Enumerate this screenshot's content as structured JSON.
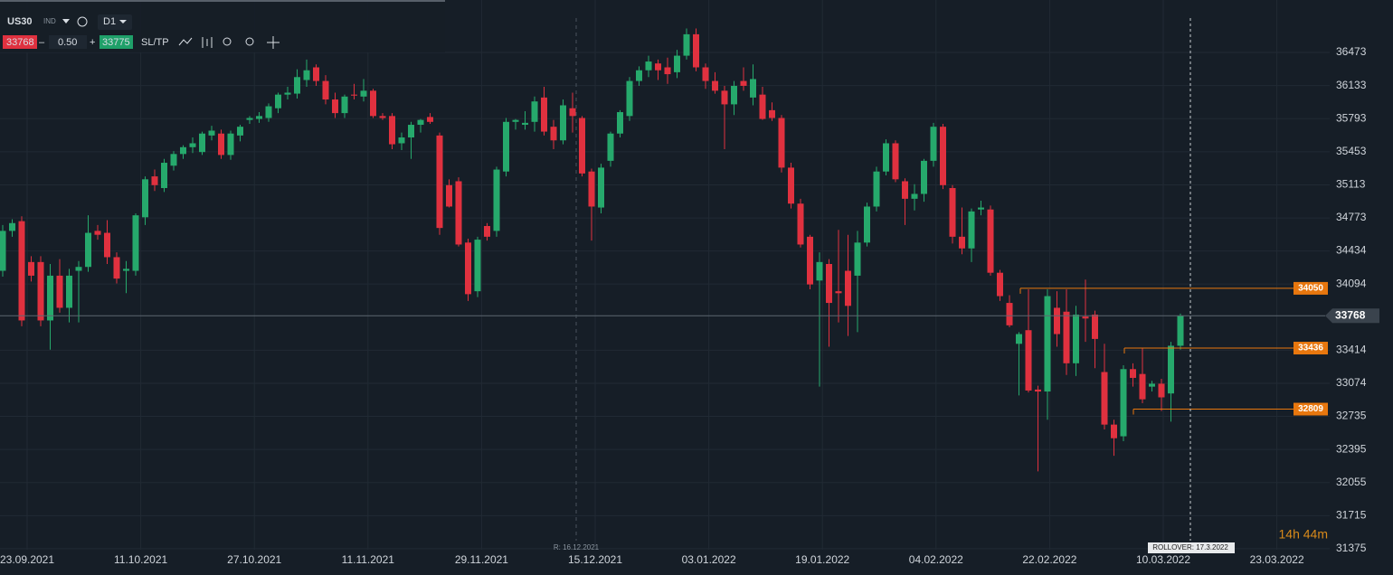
{
  "toolbar": {
    "symbol": "US30",
    "market": "IND",
    "timeframe": "D1",
    "bid": "33768",
    "minus": "–",
    "lot": "0.50",
    "plus": "+",
    "ask": "33775",
    "sltp": "SL/TP"
  },
  "chart_data": {
    "type": "candlestick",
    "candles": [
      [
        34230,
        34700,
        34170,
        34640
      ],
      [
        34640,
        34760,
        34580,
        34720
      ],
      [
        34740,
        34790,
        33660,
        33720
      ],
      [
        34320,
        34380,
        34120,
        34180
      ],
      [
        34320,
        34380,
        33660,
        33720
      ],
      [
        33720,
        34300,
        33420,
        34180
      ],
      [
        34180,
        34350,
        33800,
        33850
      ],
      [
        33850,
        34250,
        33700,
        34180
      ],
      [
        34230,
        34330,
        33700,
        34270
      ],
      [
        34270,
        34800,
        34220,
        34620
      ],
      [
        34640,
        34700,
        34550,
        34600
      ],
      [
        34620,
        34750,
        34300,
        34370
      ],
      [
        34370,
        34420,
        34100,
        34150
      ],
      [
        34230,
        34330,
        34000,
        34250
      ],
      [
        34230,
        34820,
        34180,
        34800
      ],
      [
        34780,
        35200,
        34700,
        35170
      ],
      [
        35200,
        35270,
        35050,
        35110
      ],
      [
        35080,
        35380,
        35040,
        35340
      ],
      [
        35310,
        35460,
        35260,
        35430
      ],
      [
        35430,
        35520,
        35380,
        35500
      ],
      [
        35500,
        35600,
        35440,
        35540
      ],
      [
        35450,
        35660,
        35420,
        35640
      ],
      [
        35620,
        35720,
        35570,
        35670
      ],
      [
        35640,
        35680,
        35380,
        35420
      ],
      [
        35420,
        35670,
        35370,
        35640
      ],
      [
        35620,
        35730,
        35560,
        35710
      ],
      [
        35780,
        35820,
        35740,
        35800
      ],
      [
        35790,
        35860,
        35750,
        35820
      ],
      [
        35800,
        35950,
        35760,
        35920
      ],
      [
        35900,
        36060,
        35850,
        36040
      ],
      [
        36040,
        36120,
        35990,
        36060
      ],
      [
        36050,
        36300,
        36000,
        36220
      ],
      [
        36190,
        36400,
        36120,
        36290
      ],
      [
        36320,
        36350,
        36130,
        36180
      ],
      [
        36180,
        36240,
        35940,
        35990
      ],
      [
        35990,
        36060,
        35800,
        35850
      ],
      [
        35850,
        36040,
        35800,
        36020
      ],
      [
        36040,
        36150,
        35990,
        36030
      ],
      [
        36020,
        36200,
        35970,
        36080
      ],
      [
        36080,
        36100,
        35800,
        35820
      ],
      [
        35820,
        35850,
        35780,
        35800
      ],
      [
        35820,
        35850,
        35480,
        35530
      ],
      [
        35540,
        35650,
        35470,
        35600
      ],
      [
        35600,
        35760,
        35380,
        35730
      ],
      [
        35730,
        35790,
        35650,
        35780
      ],
      [
        35810,
        35850,
        35740,
        35760
      ],
      [
        35620,
        35650,
        34600,
        34670
      ],
      [
        35110,
        35170,
        34880,
        34890
      ],
      [
        35150,
        35190,
        34480,
        34500
      ],
      [
        34520,
        34560,
        33920,
        33990
      ],
      [
        34020,
        34580,
        33960,
        34550
      ],
      [
        34690,
        34720,
        34540,
        34580
      ],
      [
        34640,
        35300,
        34580,
        35270
      ],
      [
        35250,
        35800,
        35200,
        35760
      ],
      [
        35760,
        35790,
        35680,
        35780
      ],
      [
        35730,
        35870,
        35680,
        35750
      ],
      [
        35760,
        36020,
        35660,
        35970
      ],
      [
        36010,
        36120,
        35620,
        35660
      ],
      [
        35710,
        35780,
        35480,
        35570
      ],
      [
        35570,
        35990,
        35530,
        35930
      ],
      [
        35900,
        36060,
        35650,
        35820
      ],
      [
        35800,
        35820,
        35200,
        35230
      ],
      [
        35250,
        35280,
        34540,
        34890
      ],
      [
        34880,
        35330,
        34820,
        35290
      ],
      [
        35360,
        35660,
        35300,
        35640
      ],
      [
        35640,
        35880,
        35600,
        35860
      ],
      [
        35820,
        36220,
        35770,
        36180
      ],
      [
        36180,
        36330,
        36130,
        36290
      ],
      [
        36290,
        36440,
        36220,
        36380
      ],
      [
        36360,
        36400,
        36190,
        36290
      ],
      [
        36320,
        36420,
        36150,
        36250
      ],
      [
        36270,
        36500,
        36210,
        36440
      ],
      [
        36440,
        36720,
        36400,
        36660
      ],
      [
        36660,
        36720,
        36280,
        36320
      ],
      [
        36320,
        36360,
        36100,
        36180
      ],
      [
        36180,
        36270,
        36050,
        36080
      ],
      [
        36080,
        36130,
        35480,
        35940
      ],
      [
        35940,
        36180,
        35830,
        36130
      ],
      [
        36180,
        36320,
        36080,
        36130
      ],
      [
        36010,
        36350,
        35930,
        36200
      ],
      [
        36040,
        36120,
        35780,
        35790
      ],
      [
        35880,
        35960,
        35770,
        35800
      ],
      [
        35800,
        35830,
        35240,
        35290
      ],
      [
        35290,
        35340,
        34870,
        34920
      ],
      [
        34920,
        34970,
        34470,
        34500
      ],
      [
        34580,
        34600,
        34040,
        34090
      ],
      [
        34130,
        34420,
        33040,
        34320
      ],
      [
        34300,
        34350,
        33450,
        33900
      ],
      [
        34020,
        34650,
        33700,
        34000
      ],
      [
        34230,
        34600,
        33560,
        33870
      ],
      [
        34180,
        34640,
        33600,
        34520
      ],
      [
        34520,
        34930,
        34480,
        34890
      ],
      [
        34890,
        35300,
        34840,
        35250
      ],
      [
        35250,
        35580,
        35210,
        35540
      ],
      [
        35540,
        35570,
        35140,
        35170
      ],
      [
        35150,
        35180,
        34700,
        34970
      ],
      [
        34970,
        35120,
        34850,
        35020
      ],
      [
        35020,
        35380,
        34940,
        35360
      ],
      [
        35360,
        35750,
        35300,
        35710
      ],
      [
        35710,
        35740,
        35070,
        35110
      ],
      [
        35080,
        35110,
        34510,
        34580
      ],
      [
        34580,
        34880,
        34400,
        34460
      ],
      [
        34460,
        34870,
        34320,
        34840
      ],
      [
        34860,
        34950,
        34800,
        34880
      ],
      [
        34860,
        34900,
        34180,
        34210
      ],
      [
        34210,
        34240,
        33920,
        33970
      ],
      [
        33900,
        33980,
        33650,
        33670
      ],
      [
        33480,
        33600,
        32950,
        33580
      ],
      [
        33620,
        34040,
        32980,
        33000
      ],
      [
        33010,
        33050,
        32170,
        32990
      ],
      [
        32990,
        34040,
        32700,
        33970
      ],
      [
        33850,
        34020,
        33450,
        33580
      ],
      [
        33810,
        34040,
        33160,
        33280
      ],
      [
        33280,
        33870,
        33150,
        33780
      ],
      [
        33760,
        34140,
        33500,
        33740
      ],
      [
        33780,
        33820,
        33230,
        33530
      ],
      [
        33190,
        33480,
        32600,
        32650
      ],
      [
        32650,
        32700,
        32330,
        32510
      ],
      [
        32530,
        33260,
        32480,
        33220
      ],
      [
        33220,
        33280,
        33040,
        33130
      ],
      [
        33170,
        33440,
        32870,
        32910
      ],
      [
        33040,
        33100,
        32990,
        33070
      ],
      [
        33070,
        33120,
        32790,
        32930
      ],
      [
        32970,
        33500,
        32680,
        33460
      ],
      [
        33460,
        33790,
        33420,
        33768
      ]
    ],
    "ylim": [
      31365,
      37012
    ],
    "yticks": [
      31375,
      31715,
      32055,
      32395,
      32735,
      33074,
      33414,
      34094,
      34434,
      34773,
      35113,
      35453,
      35793,
      36133,
      36473
    ],
    "x_labels": [
      "23.09.2021",
      "11.10.2021",
      "27.10.2021",
      "11.11.2021",
      "29.11.2021",
      "15.12.2021",
      "03.01.2022",
      "19.01.2022",
      "04.02.2022",
      "22.02.2022",
      "10.03.2022",
      "23.03.2022"
    ],
    "levels": [
      34050,
      33436,
      32809
    ],
    "current_price": 33768,
    "markers": [
      {
        "label": "R: 16.12.2021"
      },
      {
        "label": "ROLLOVER: 17.3.2022"
      }
    ],
    "timer": "14h 44m",
    "up_color": "#26a96c",
    "down_color": "#e0313f",
    "level_color": "#e8770e"
  }
}
